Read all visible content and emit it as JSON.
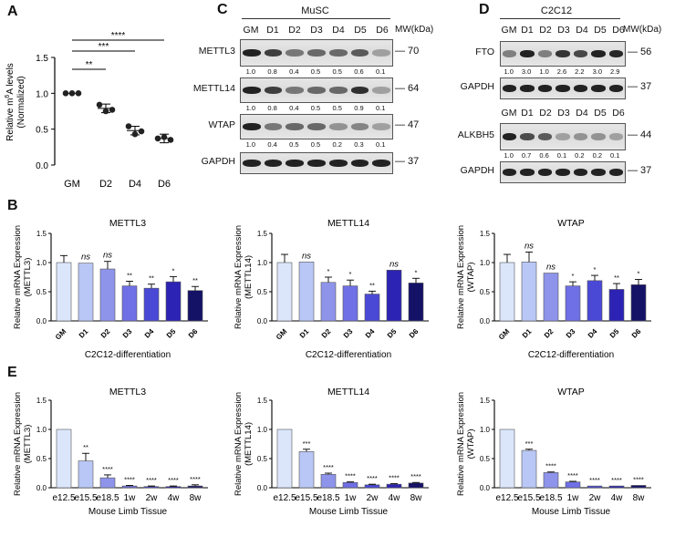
{
  "panels": {
    "A": "A",
    "B": "B",
    "C": "C",
    "D": "D",
    "E": "E"
  },
  "A": {
    "ylabel1": "Relative m A levels",
    "ylabel_sup": "6",
    "ylabel2": "(Normalized)",
    "yticks": [
      "1.5",
      "1.0",
      "0.5",
      "0.0"
    ],
    "categories": [
      "GM",
      "D2",
      "D4",
      "D6"
    ],
    "values": [
      1.0,
      0.79,
      0.48,
      0.37
    ],
    "sig": [
      "****",
      "***",
      "**"
    ]
  },
  "C": {
    "title": "MuSC",
    "lanes": [
      "GM",
      "D1",
      "D2",
      "D3",
      "D4",
      "D5",
      "D6"
    ],
    "mw_header": "MW(kDa)",
    "blots": [
      {
        "label": "METTL3",
        "mw": "70",
        "quant": [
          "1.0",
          "0.8",
          "0.4",
          "0.5",
          "0.5",
          "0.6",
          "0.1"
        ]
      },
      {
        "label": "METTL14",
        "mw": "64",
        "quant": [
          "1.0",
          "0.8",
          "0.4",
          "0.5",
          "0.5",
          "0.9",
          "0.1"
        ]
      },
      {
        "label": "WTAP",
        "mw": "47",
        "quant": [
          "1.0",
          "0.4",
          "0.5",
          "0.5",
          "0.2",
          "0.3",
          "0.1"
        ]
      },
      {
        "label": "GAPDH",
        "mw": "37",
        "quant": []
      }
    ]
  },
  "D": {
    "title": "C2C12",
    "lanes": [
      "GM",
      "D1",
      "D2",
      "D3",
      "D4",
      "D5",
      "D6"
    ],
    "mw_header": "MW(kDa)",
    "blots1": [
      {
        "label": "FTO",
        "mw": "56",
        "quant": [
          "1.0",
          "3.0",
          "1.0",
          "2.6",
          "2.2",
          "3.0",
          "2.9"
        ]
      },
      {
        "label": "GAPDH",
        "mw": "37",
        "quant": []
      }
    ],
    "blots2": [
      {
        "label": "ALKBH5",
        "mw": "44",
        "quant": [
          "1.0",
          "0.7",
          "0.6",
          "0.1",
          "0.2",
          "0.2",
          "0.1"
        ]
      },
      {
        "label": "GAPDH",
        "mw": "37",
        "quant": []
      }
    ]
  },
  "chart_data": [
    {
      "type": "bar",
      "title": "METTL3",
      "ylabel": "Relative mRNA Expression (METTL3)",
      "xlabel": "C2C12-differentiation",
      "categories": [
        "GM",
        "D1",
        "D2",
        "D3",
        "D4",
        "D5",
        "D6"
      ],
      "values": [
        1.0,
        0.99,
        0.89,
        0.6,
        0.56,
        0.67,
        0.52
      ],
      "errors": [
        0.12,
        0.0,
        0.13,
        0.08,
        0.07,
        0.09,
        0.07
      ],
      "sig": [
        "",
        "ns",
        "ns",
        "**",
        "**",
        "*",
        "**"
      ],
      "ylim": [
        0,
        1.5
      ],
      "yticks": [
        "0.0",
        "0.5",
        "1.0",
        "1.5"
      ]
    },
    {
      "type": "bar",
      "title": "METTL14",
      "ylabel": "Relative mRNA Expression (METTL14)",
      "xlabel": "C2C12-differentiation",
      "categories": [
        "GM",
        "D1",
        "D2",
        "D3",
        "D4",
        "D5",
        "D6"
      ],
      "values": [
        1.0,
        1.01,
        0.66,
        0.6,
        0.46,
        0.87,
        0.65
      ],
      "errors": [
        0.14,
        0.0,
        0.09,
        0.1,
        0.05,
        0.0,
        0.08
      ],
      "sig": [
        "",
        "ns",
        "*",
        "*",
        "**",
        "ns",
        "*"
      ],
      "ylim": [
        0,
        1.5
      ],
      "yticks": [
        "0.0",
        "0.5",
        "1.0",
        "1.5"
      ]
    },
    {
      "type": "bar",
      "title": "WTAP",
      "ylabel": "Relative mRNA Expression (WTAP)",
      "xlabel": "C2C12-differentiation",
      "categories": [
        "GM",
        "D1",
        "D2",
        "D3",
        "D4",
        "D5",
        "D6"
      ],
      "values": [
        1.0,
        1.01,
        0.82,
        0.6,
        0.69,
        0.54,
        0.62
      ],
      "errors": [
        0.14,
        0.17,
        0.0,
        0.07,
        0.09,
        0.1,
        0.09
      ],
      "sig": [
        "",
        "ns",
        "ns",
        "*",
        "*",
        "**",
        "*"
      ],
      "ylim": [
        0,
        1.5
      ],
      "yticks": [
        "0.0",
        "0.5",
        "1.0",
        "1.5"
      ]
    },
    {
      "type": "bar",
      "title": "METTL3",
      "ylabel": "Relative mRNA Expression (METTL3)",
      "xlabel": "Mouse Limb Tissue",
      "categories": [
        "e12.5",
        "e15.5",
        "e18.5",
        "1w",
        "2w",
        "4w",
        "8w"
      ],
      "values": [
        1.0,
        0.46,
        0.17,
        0.03,
        0.02,
        0.02,
        0.03
      ],
      "errors": [
        0.0,
        0.13,
        0.05,
        0.01,
        0.01,
        0.01,
        0.02
      ],
      "sig": [
        "",
        "**",
        "****",
        "****",
        "****",
        "****",
        "****"
      ],
      "ylim": [
        0,
        1.5
      ],
      "yticks": [
        "0.0",
        "0.5",
        "1.0",
        "1.5"
      ]
    },
    {
      "type": "bar",
      "title": "METTL14",
      "ylabel": "Relative mRNA Expression (METTL14)",
      "xlabel": "Mouse Limb Tissue",
      "categories": [
        "e12.5",
        "e15.5",
        "e18.5",
        "1w",
        "2w",
        "4w",
        "8w"
      ],
      "values": [
        1.0,
        0.62,
        0.23,
        0.09,
        0.05,
        0.06,
        0.08
      ],
      "errors": [
        0.0,
        0.04,
        0.02,
        0.01,
        0.01,
        0.01,
        0.01
      ],
      "sig": [
        "",
        "***",
        "****",
        "****",
        "****",
        "****",
        "****"
      ],
      "ylim": [
        0,
        1.5
      ],
      "yticks": [
        "0.0",
        "0.5",
        "1.0",
        "1.5"
      ]
    },
    {
      "type": "bar",
      "title": "WTAP",
      "ylabel": "Relative mRNA Expression (WTAP)",
      "xlabel": "Mouse Limb Tissue",
      "categories": [
        "e12.5",
        "e15.5",
        "e18.5",
        "1w",
        "2w",
        "4w",
        "8w"
      ],
      "values": [
        1.0,
        0.64,
        0.26,
        0.1,
        0.03,
        0.03,
        0.04
      ],
      "errors": [
        0.0,
        0.02,
        0.01,
        0.01,
        0.0,
        0.0,
        0.0
      ],
      "sig": [
        "",
        "***",
        "****",
        "****",
        "****",
        "****",
        "****"
      ],
      "ylim": [
        0,
        1.5
      ],
      "yticks": [
        "0.0",
        "0.5",
        "1.0",
        "1.5"
      ]
    }
  ],
  "colors": {
    "bars": [
      "#dbe6fb",
      "#b9c7f6",
      "#8e94ea",
      "#6f6fe6",
      "#4a49d6",
      "#2c23b4",
      "#141267"
    ],
    "dots": "#222222"
  }
}
